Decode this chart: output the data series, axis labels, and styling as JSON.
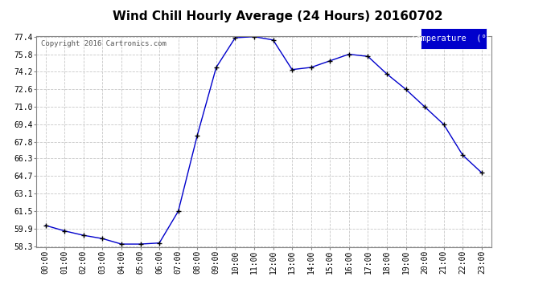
{
  "title": "Wind Chill Hourly Average (24 Hours) 20160702",
  "copyright": "Copyright 2016 Cartronics.com",
  "legend_label": "Temperature  (°F)",
  "x_labels": [
    "00:00",
    "01:00",
    "02:00",
    "03:00",
    "04:00",
    "05:00",
    "06:00",
    "07:00",
    "08:00",
    "09:00",
    "10:00",
    "11:00",
    "12:00",
    "13:00",
    "14:00",
    "15:00",
    "16:00",
    "17:00",
    "18:00",
    "19:00",
    "20:00",
    "21:00",
    "22:00",
    "23:00"
  ],
  "y_values": [
    60.2,
    59.7,
    59.3,
    59.0,
    58.5,
    58.5,
    58.6,
    61.5,
    68.4,
    74.6,
    77.3,
    77.4,
    77.1,
    74.4,
    74.6,
    75.2,
    75.8,
    75.6,
    74.0,
    72.6,
    71.0,
    69.4,
    66.6,
    65.0
  ],
  "ylim_min": 58.3,
  "ylim_max": 77.4,
  "yticks": [
    58.3,
    59.9,
    61.5,
    63.1,
    64.7,
    66.3,
    67.8,
    69.4,
    71.0,
    72.6,
    74.2,
    75.8,
    77.4
  ],
  "line_color": "#0000cc",
  "marker": "+",
  "marker_color": "#000000",
  "bg_color": "#ffffff",
  "grid_color": "#c8c8c8",
  "title_fontsize": 11,
  "copyright_fontsize": 6.5,
  "tick_fontsize": 7,
  "legend_bg": "#0000cc",
  "legend_fg": "#ffffff",
  "legend_fontsize": 7.5
}
